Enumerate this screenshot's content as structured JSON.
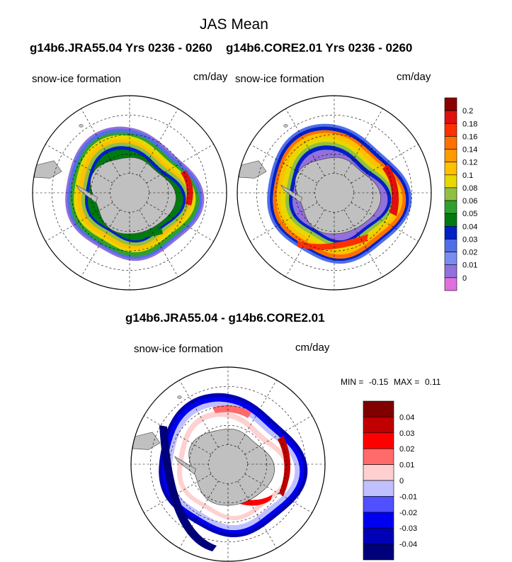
{
  "chart_data": [
    {
      "type": "map",
      "title": "JAS Mean",
      "subtitle": "g14b6.JRA55.04  Yrs 0236 - 0260",
      "left_label": "snow-ice formation",
      "right_label": "cm/day",
      "projection": "south-polar stereographic",
      "colorbar": {
        "levels": [
          0,
          0.01,
          0.02,
          0.03,
          0.04,
          0.05,
          0.06,
          0.08,
          0.1,
          0.12,
          0.14,
          0.16,
          0.18,
          0.2
        ],
        "level_labels": [
          "0",
          "0.01",
          "0.02",
          "0.03",
          "0.04",
          "0.05",
          "0.06",
          "0.08",
          "0.1",
          "0.12",
          "0.14",
          "0.16",
          "0.18",
          "0.2"
        ],
        "colors": [
          "#e070e0",
          "#9370db",
          "#7b8cf0",
          "#4f6fe8",
          "#0020c8",
          "#007a10",
          "#2fa030",
          "#90c040",
          "#e8d800",
          "#ffc000",
          "#ff9a00",
          "#ff7000",
          "#ff3000",
          "#e01010",
          "#8b0000"
        ]
      }
    },
    {
      "type": "map",
      "subtitle": "g14b6.CORE2.01  Yrs 0236 - 0260",
      "left_label": "snow-ice formation",
      "right_label": "cm/day",
      "projection": "south-polar stereographic"
    },
    {
      "type": "map",
      "title": "g14b6.JRA55.04 - g14b6.CORE2.01",
      "left_label": "snow-ice formation",
      "right_label": "cm/day",
      "projection": "south-polar stereographic",
      "min_label": "MIN =",
      "min": "-0.15",
      "max_label": "MAX =",
      "max": "0.11",
      "colorbar": {
        "level_labels": [
          "-0.04",
          "-0.03",
          "-0.02",
          "-0.01",
          "0",
          "0.01",
          "0.02",
          "0.03",
          "0.04"
        ],
        "colors": [
          "#00007a",
          "#0000b4",
          "#0000f0",
          "#5050ff",
          "#c0c0ff",
          "#ffd0d0",
          "#ff6a6a",
          "#ff0000",
          "#c00000",
          "#800000"
        ]
      }
    }
  ],
  "layout_text": {
    "title": "JAS Mean",
    "header_left": "g14b6.JRA55.04  Yrs 0236 - 0260",
    "header_right": "g14b6.CORE2.01  Yrs 0236 - 0260",
    "diff_title": "g14b6.JRA55.04 - g14b6.CORE2.01"
  }
}
